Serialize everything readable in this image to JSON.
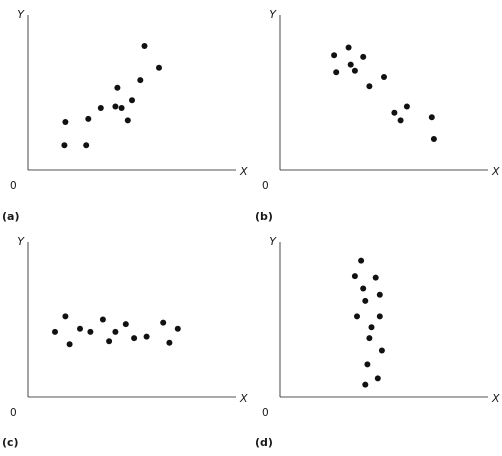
{
  "chart_data": [
    {
      "type": "scatter",
      "panel_label": "(a)",
      "xlabel": "X",
      "ylabel": "Y",
      "origin_label": "0",
      "xlim": [
        0,
        10
      ],
      "ylim": [
        0,
        10
      ],
      "grid": false,
      "x": [
        1.75,
        1.8,
        2.8,
        2.9,
        3.5,
        4.2,
        4.3,
        4.5,
        4.8,
        5.0,
        5.4,
        5.6,
        6.3
      ],
      "y": [
        1.6,
        3.1,
        1.6,
        3.3,
        4.0,
        4.1,
        5.3,
        4.0,
        3.2,
        4.5,
        5.8,
        8.0,
        6.6
      ]
    },
    {
      "type": "scatter",
      "panel_label": "(b)",
      "xlabel": "X",
      "ylabel": "Y",
      "origin_label": "0",
      "xlim": [
        0,
        10
      ],
      "ylim": [
        0,
        10
      ],
      "grid": false,
      "x": [
        2.6,
        2.7,
        3.3,
        3.4,
        3.6,
        4.0,
        4.3,
        5.0,
        5.5,
        5.8,
        6.1,
        7.3,
        7.4
      ],
      "y": [
        7.4,
        6.3,
        7.9,
        6.8,
        6.4,
        7.3,
        5.4,
        6.0,
        3.7,
        3.2,
        4.1,
        3.4,
        2.0
      ]
    },
    {
      "type": "scatter",
      "panel_label": "(c)",
      "xlabel": "X",
      "ylabel": "Y",
      "origin_label": "0",
      "xlim": [
        0,
        10
      ],
      "ylim": [
        0,
        10
      ],
      "grid": false,
      "x": [
        1.3,
        1.8,
        2.0,
        2.5,
        3.0,
        3.6,
        3.9,
        4.2,
        4.7,
        5.1,
        5.7,
        6.5,
        6.8,
        7.2
      ],
      "y": [
        4.2,
        5.2,
        3.4,
        4.4,
        4.2,
        5.0,
        3.6,
        4.2,
        4.7,
        3.8,
        3.9,
        4.8,
        3.5,
        4.4
      ]
    },
    {
      "type": "scatter",
      "panel_label": "(d)",
      "xlabel": "X",
      "ylabel": "Y",
      "origin_label": "0",
      "xlim": [
        0,
        10
      ],
      "ylim": [
        0,
        10
      ],
      "grid": false,
      "x": [
        3.6,
        3.7,
        3.9,
        4.0,
        4.1,
        4.1,
        4.2,
        4.3,
        4.4,
        4.6,
        4.8,
        4.8,
        4.9,
        4.7
      ],
      "y": [
        7.8,
        5.2,
        8.8,
        7.0,
        6.2,
        0.8,
        2.1,
        3.8,
        4.5,
        7.7,
        6.6,
        5.2,
        3.0,
        1.2
      ]
    }
  ]
}
